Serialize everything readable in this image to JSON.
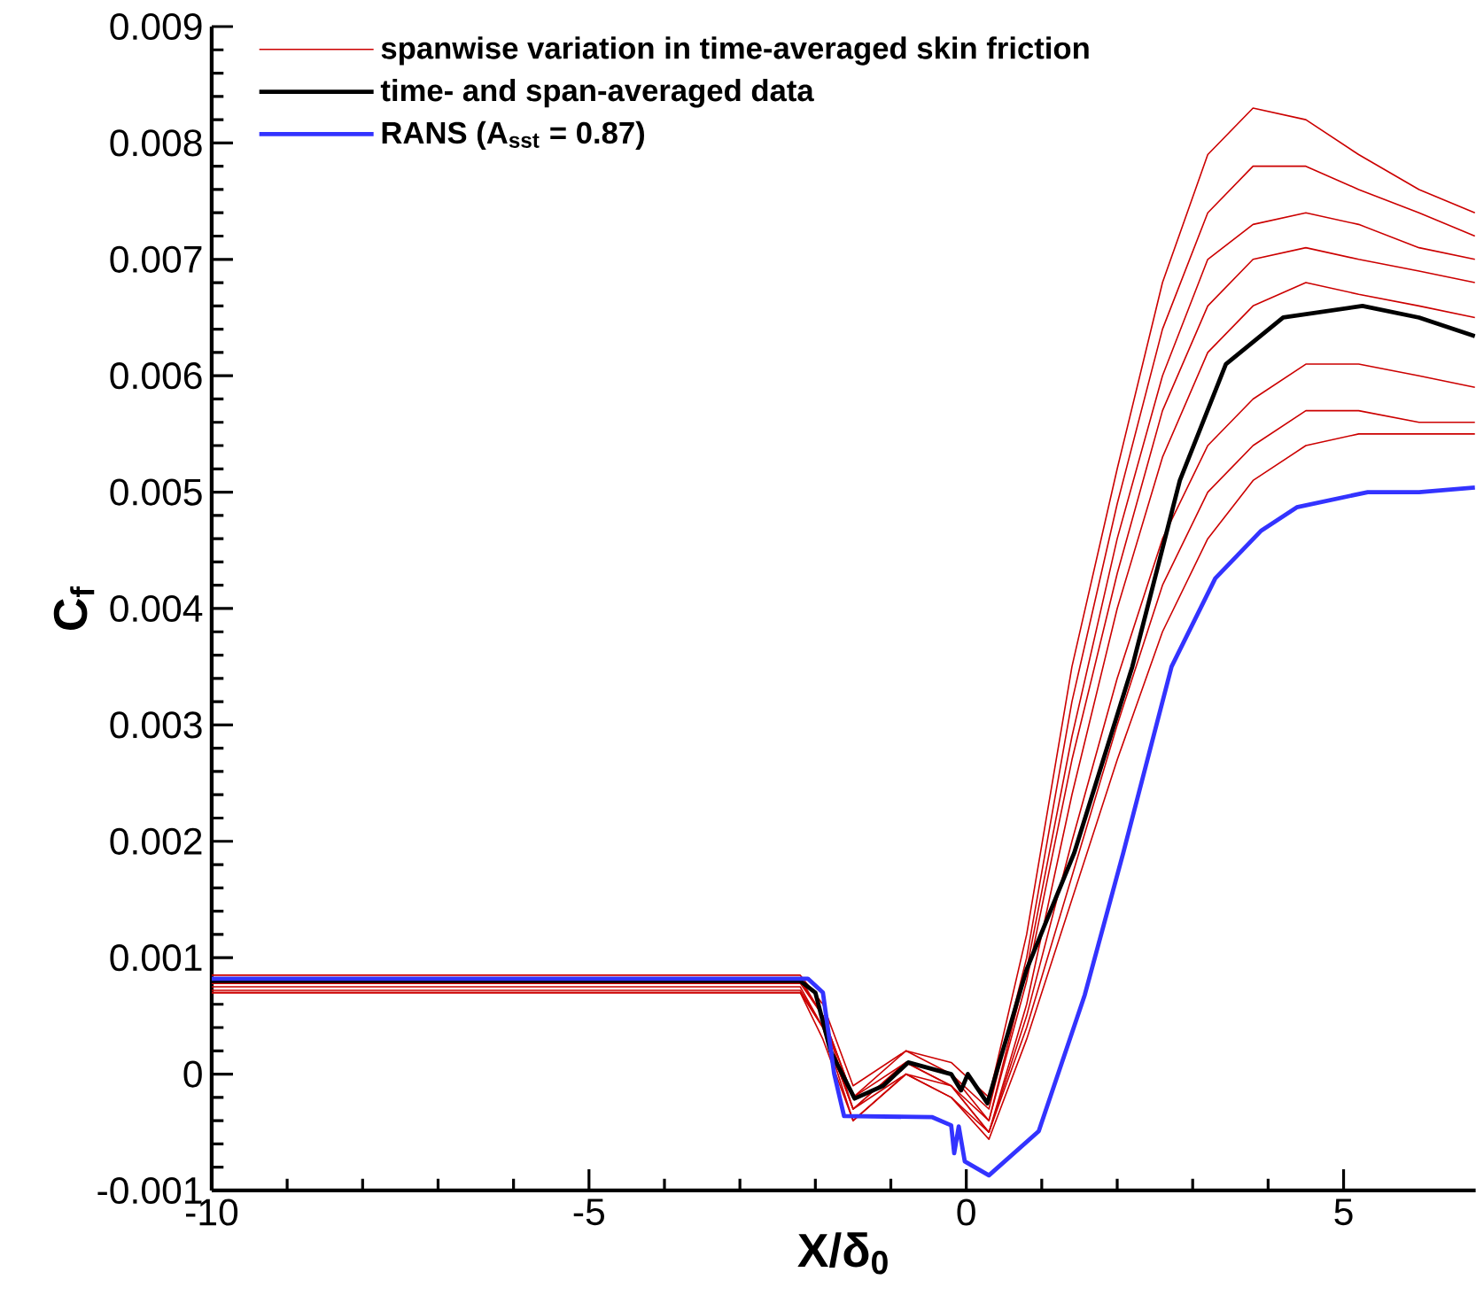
{
  "chart_data": {
    "type": "line",
    "xlabel": "X/δ$_{0}$",
    "ylabel": "C$_{f}$",
    "xlim": [
      -10,
      6.75
    ],
    "ylim": [
      -0.001,
      0.009
    ],
    "xticks": [
      -10,
      -5,
      0,
      5
    ],
    "yticks": [
      -0.001,
      0,
      0.001,
      0.002,
      0.003,
      0.004,
      0.005,
      0.006,
      0.007,
      0.008,
      0.009
    ],
    "legend": "top left",
    "series": [
      {
        "name": "spanwise variation in time-averaged skin friction",
        "color": "#cc0000",
        "x": [
          -10,
          -2.2,
          -1.9,
          -1.5,
          -0.8,
          -0.2,
          0.3,
          0.8,
          1.4,
          2.0,
          2.6,
          3.2,
          3.8,
          4.5,
          5.2,
          6.0,
          6.74
        ],
        "values": [
          0.00085,
          0.00085,
          0.0006,
          -0.0001,
          0.0002,
          0.0001,
          -0.0002,
          0.0012,
          0.0035,
          0.0052,
          0.0068,
          0.0079,
          0.0083,
          0.0082,
          0.0079,
          0.0076,
          0.0074
        ]
      },
      {
        "color": "#cc0000",
        "x": [
          -10,
          -2.2,
          -1.9,
          -1.5,
          -0.8,
          -0.2,
          0.3,
          0.8,
          1.4,
          2.0,
          2.6,
          3.2,
          3.8,
          4.5,
          5.2,
          6.0,
          6.74
        ],
        "values": [
          0.0008,
          0.0008,
          0.0005,
          -0.0002,
          0.0002,
          0.0,
          -0.0003,
          0.001,
          0.0032,
          0.0049,
          0.0064,
          0.0074,
          0.0078,
          0.0078,
          0.0076,
          0.0074,
          0.0072
        ]
      },
      {
        "color": "#cc0000",
        "x": [
          -10,
          -2.2,
          -1.9,
          -1.5,
          -0.8,
          -0.2,
          0.3,
          0.8,
          1.4,
          2.0,
          2.6,
          3.2,
          3.8,
          4.5,
          5.2,
          6.0,
          6.74
        ],
        "values": [
          0.00078,
          0.00078,
          0.0005,
          -0.0002,
          0.0001,
          0.0,
          -0.0004,
          0.0009,
          0.0029,
          0.0046,
          0.006,
          0.007,
          0.0073,
          0.0074,
          0.0073,
          0.0071,
          0.007
        ]
      },
      {
        "color": "#cc0000",
        "x": [
          -10,
          -2.2,
          -1.9,
          -1.5,
          -0.8,
          -0.2,
          0.3,
          0.8,
          1.4,
          2.0,
          2.6,
          3.2,
          3.8,
          4.5,
          5.2,
          6.0,
          6.74
        ],
        "values": [
          0.00075,
          0.00075,
          0.0004,
          -0.0003,
          0.0001,
          -0.0001,
          -0.0004,
          0.0008,
          0.0027,
          0.0043,
          0.0057,
          0.0066,
          0.007,
          0.0071,
          0.007,
          0.0069,
          0.0068
        ]
      },
      {
        "color": "#cc0000",
        "x": [
          -10,
          -2.2,
          -1.9,
          -1.5,
          -0.8,
          -0.2,
          0.3,
          0.8,
          1.4,
          2.0,
          2.6,
          3.2,
          3.8,
          4.5,
          5.2,
          6.0,
          6.74
        ],
        "values": [
          0.00072,
          0.00072,
          0.0004,
          -0.0003,
          0.0,
          -0.0001,
          -0.0005,
          0.0006,
          0.0024,
          0.004,
          0.0053,
          0.0062,
          0.0066,
          0.0068,
          0.0067,
          0.0066,
          0.0065
        ]
      },
      {
        "color": "#cc0000",
        "x": [
          -10,
          -2.2,
          -1.9,
          -1.5,
          -0.8,
          -0.2,
          0.3,
          0.8,
          1.4,
          2.0,
          2.6,
          3.2,
          3.8,
          4.5,
          5.2,
          6.0,
          6.74
        ],
        "values": [
          0.0007,
          0.0007,
          0.0004,
          -0.0004,
          0.0,
          -0.0002,
          -0.0005,
          0.0005,
          0.002,
          0.0034,
          0.0046,
          0.0054,
          0.0058,
          0.0061,
          0.0061,
          0.006,
          0.0059
        ]
      },
      {
        "color": "#cc0000",
        "x": [
          -10,
          -2.2,
          -1.9,
          -1.5,
          -0.8,
          -0.2,
          0.3,
          0.8,
          1.4,
          2.0,
          2.6,
          3.2,
          3.8,
          4.5,
          5.2,
          6.0,
          6.74
        ],
        "values": [
          0.00082,
          0.00082,
          0.0005,
          -0.0003,
          0.0001,
          -0.0001,
          -0.0005,
          0.0004,
          0.0017,
          0.003,
          0.0042,
          0.005,
          0.0054,
          0.0057,
          0.0057,
          0.0056,
          0.0056
        ]
      },
      {
        "color": "#cc0000",
        "x": [
          -10,
          -2.2,
          -1.9,
          -1.5,
          -0.8,
          -0.2,
          0.3,
          0.8,
          1.4,
          2.0,
          2.6,
          3.2,
          3.8,
          4.5,
          5.2,
          6.0,
          6.74
        ],
        "values": [
          0.0007,
          0.0007,
          0.0003,
          -0.0004,
          0.0,
          -0.0002,
          -0.00056,
          0.0003,
          0.0015,
          0.0027,
          0.0038,
          0.0046,
          0.0051,
          0.0054,
          0.0055,
          0.0055,
          0.0055
        ]
      },
      {
        "name": "time- and span-averaged data",
        "color": "#000000",
        "x": [
          -10,
          -2.2,
          -2.0,
          -1.8,
          -1.48,
          -1.1,
          -0.77,
          -0.2,
          -0.07,
          0.02,
          0.28,
          0.8,
          1.43,
          2.2,
          2.83,
          3.44,
          4.2,
          5.25,
          6.0,
          6.74
        ],
        "values": [
          0.0008,
          0.0008,
          0.0007,
          0.0002,
          -0.00021,
          -0.0001,
          0.0001,
          0.0,
          -0.00014,
          0.0,
          -0.00025,
          0.0009,
          0.0019,
          0.0035,
          0.0051,
          0.0061,
          0.0065,
          0.0066,
          0.0065,
          0.00634
        ]
      },
      {
        "name": "RANS (A$_{sst}$ = 0.87)",
        "color": "#3333ff",
        "x": [
          -10,
          -2.1,
          -1.9,
          -1.75,
          -1.62,
          -0.45,
          -0.2,
          -0.16,
          -0.1,
          -0.02,
          0.3,
          0.96,
          1.57,
          2.08,
          2.72,
          3.3,
          3.91,
          4.38,
          5.32,
          6.0,
          6.74
        ],
        "values": [
          0.00082,
          0.00082,
          0.0007,
          0.0,
          -0.00036,
          -0.00037,
          -0.00044,
          -0.00068,
          -0.00045,
          -0.00075,
          -0.00087,
          -0.00049,
          0.00068,
          0.0019,
          0.0035,
          0.00426,
          0.00467,
          0.00487,
          0.005,
          0.005,
          0.00504
        ]
      }
    ]
  }
}
